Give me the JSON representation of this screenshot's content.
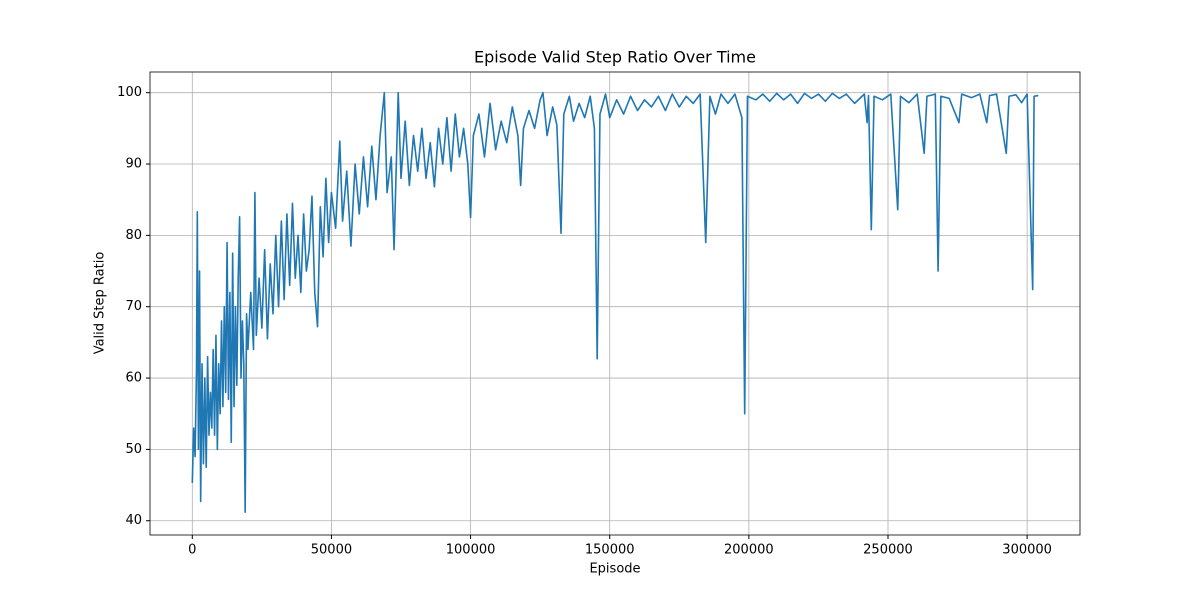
{
  "chart_data": {
    "type": "line",
    "title": "Episode Valid Step Ratio Over Time",
    "x_label": "Episode",
    "y_label": "Valid Step Ratio",
    "color": "#1f77b4",
    "grid": true,
    "xlim": [
      -15200,
      319000
    ],
    "ylim": [
      38.0,
      102.9
    ],
    "xticks": [
      0,
      50000,
      100000,
      150000,
      200000,
      250000,
      300000
    ],
    "yticks": [
      40,
      50,
      60,
      70,
      80,
      90,
      100
    ],
    "x": [
      0,
      500,
      1000,
      1500,
      1800,
      2200,
      2600,
      3000,
      3500,
      4000,
      4500,
      5000,
      5500,
      6000,
      6500,
      7000,
      7500,
      8000,
      8500,
      9000,
      9500,
      10000,
      10500,
      11000,
      11500,
      12000,
      12500,
      13000,
      13500,
      14000,
      14500,
      15000,
      15500,
      16000,
      16500,
      17000,
      17500,
      18000,
      18500,
      19000,
      19500,
      20000,
      21000,
      22000,
      22500,
      23000,
      24000,
      25000,
      26000,
      27000,
      28000,
      29000,
      30000,
      31000,
      32000,
      33000,
      34000,
      35000,
      36000,
      37000,
      38000,
      39000,
      40000,
      41000,
      42000,
      43000,
      44000,
      45000,
      46000,
      47000,
      48000,
      49000,
      50000,
      51500,
      53000,
      54000,
      55500,
      57000,
      58500,
      60000,
      61500,
      63000,
      64500,
      66000,
      67500,
      69000,
      70000,
      71500,
      72500,
      74000,
      75000,
      76500,
      78000,
      79500,
      81000,
      82500,
      84000,
      85500,
      87000,
      88500,
      90000,
      91500,
      93000,
      94500,
      96000,
      97500,
      99000,
      100000,
      101000,
      103000,
      105000,
      107000,
      109000,
      111000,
      113000,
      115000,
      117000,
      118000,
      119000,
      121000,
      123000,
      125000,
      126000,
      127500,
      129500,
      131000,
      132500,
      133500,
      135500,
      137000,
      139000,
      141000,
      143000,
      144500,
      145500,
      146500,
      148500,
      150000,
      152500,
      155000,
      157500,
      160000,
      162500,
      165000,
      167500,
      170000,
      172500,
      175000,
      177500,
      180000,
      182500,
      184500,
      186000,
      188000,
      190000,
      192500,
      195000,
      197500,
      198500,
      199500,
      202500,
      205000,
      207500,
      210000,
      212500,
      215000,
      217500,
      220000,
      222500,
      225000,
      227500,
      230000,
      232500,
      235000,
      238000,
      241500,
      242500,
      243000,
      244000,
      245000,
      248000,
      251000,
      253500,
      254500,
      257500,
      260500,
      263000,
      264000,
      267000,
      268000,
      269000,
      272000,
      275500,
      276500,
      280000,
      283000,
      285500,
      286500,
      289000,
      292500,
      293500,
      296000,
      298000,
      300000,
      302000,
      302500,
      304000
    ],
    "values": [
      45.3,
      53,
      49,
      61,
      83.3,
      50,
      75,
      42.7,
      62,
      48,
      60,
      47.5,
      63,
      52,
      58,
      53,
      64,
      52,
      66,
      50,
      62,
      55,
      68,
      56,
      70,
      58,
      79,
      57,
      72,
      51,
      77.5,
      56,
      70,
      59,
      74,
      82.6,
      60,
      68,
      62,
      41.2,
      69,
      64,
      72,
      64,
      86,
      66,
      74,
      67,
      78,
      65.5,
      76,
      69,
      80,
      70,
      82,
      71,
      83,
      73,
      84.5,
      74,
      80,
      72,
      83,
      75,
      78,
      85.5,
      72,
      67.2,
      84,
      77,
      88,
      79,
      86,
      81,
      93.2,
      82,
      89,
      78.5,
      90,
      83,
      91,
      84,
      92.5,
      85,
      94,
      100,
      86,
      91,
      78,
      100,
      88,
      96,
      87,
      94,
      89,
      95,
      88,
      93,
      86.8,
      95,
      90,
      96.5,
      89,
      97,
      91,
      95,
      90,
      82.5,
      94,
      97,
      91,
      98.5,
      92,
      96,
      93,
      98,
      94,
      87,
      95,
      97.5,
      95,
      99,
      100,
      94,
      98,
      95.5,
      80.3,
      97,
      99.5,
      96,
      98.5,
      96.5,
      99.5,
      95,
      62.7,
      97,
      99.8,
      96.5,
      99,
      97,
      99.5,
      97.5,
      99,
      98,
      99.5,
      97.5,
      99.8,
      98,
      99.5,
      98.5,
      99.8,
      79,
      99.5,
      97,
      99.8,
      98.5,
      99.8,
      96.5,
      55,
      99.5,
      99,
      99.8,
      98.8,
      99.9,
      99,
      99.8,
      98.5,
      99.9,
      99.2,
      99.8,
      98.8,
      99.9,
      99.2,
      99.8,
      98.5,
      99.8,
      95.8,
      99.6,
      80.8,
      99.5,
      99,
      99.8,
      83.6,
      99.5,
      98.6,
      99.8,
      91.5,
      99.5,
      99.8,
      75,
      99.5,
      99.2,
      95.8,
      99.8,
      99.3,
      99.8,
      95.8,
      99.6,
      99.8,
      91.5,
      99.5,
      99.7,
      98.6,
      99.8,
      72.4,
      99.5,
      99.6
    ]
  }
}
